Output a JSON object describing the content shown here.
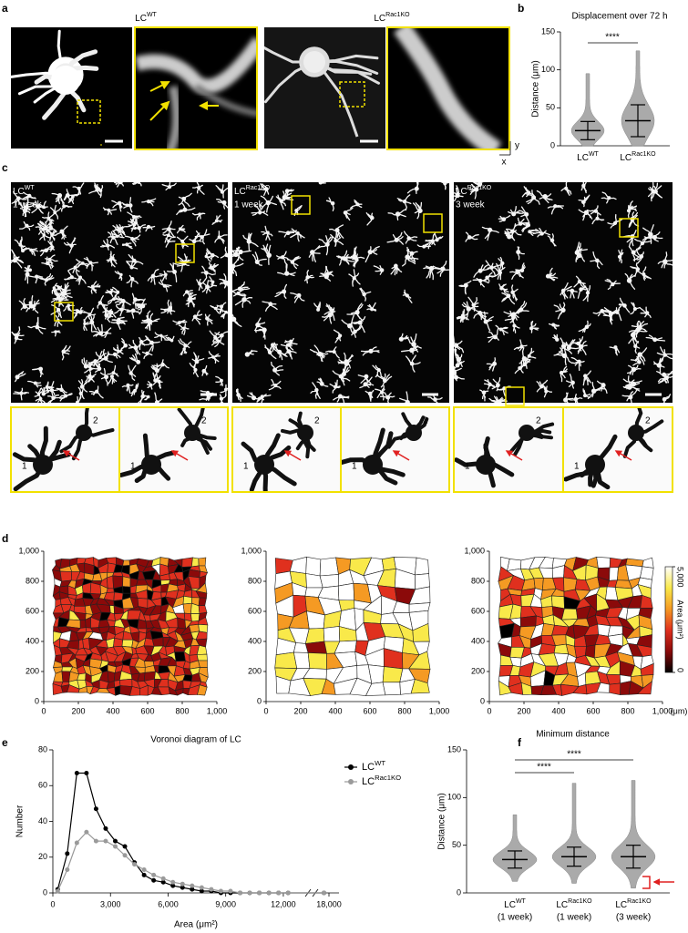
{
  "figure": {
    "panel_letters": [
      "a",
      "b",
      "c",
      "d",
      "e",
      "f"
    ],
    "a": {
      "groups": [
        {
          "name": "LC",
          "sup": "WT"
        },
        {
          "name": "LC",
          "sup": "Rac1KO"
        }
      ],
      "x_axis": "x",
      "y_axis": "y"
    },
    "c": {
      "groups": [
        {
          "name": "LC",
          "sup": "WT",
          "time": "1 week"
        },
        {
          "name": "LC",
          "sup": "Rac1KO",
          "time": "1 week"
        },
        {
          "name": "LC",
          "sup": "Rac1KO",
          "time": "3 week"
        }
      ],
      "cell_labels": [
        "1",
        "2"
      ]
    }
  },
  "chart_data": [
    {
      "type": "swarm",
      "title": "Displacement over 72 h",
      "y_label": "Distance (μm)",
      "categories": [
        "LC",
        "LC"
      ],
      "category_sups": [
        "WT",
        "Rac1KO"
      ],
      "values": [
        20,
        33
      ],
      "errors": [
        12,
        21
      ],
      "mins": [
        0,
        0
      ],
      "maxs": [
        95,
        125
      ],
      "ylim": [
        0,
        150
      ],
      "yticks": [
        0,
        50,
        100,
        150
      ],
      "significance": [
        "****"
      ],
      "color": "#aaaaaa"
    },
    {
      "type": "voronoi",
      "xlim": [
        0,
        1000
      ],
      "ylim": [
        0,
        1000
      ],
      "xticks": [
        0,
        200,
        400,
        600,
        800,
        {
          "value": 1000,
          "label": "1,000"
        }
      ],
      "yticks": [
        0,
        200,
        400,
        600,
        800,
        {
          "value": 1000,
          "label": "1,000"
        }
      ],
      "x_unit": "(μm)",
      "colorbar": {
        "label": "Area (μm²)",
        "lim": [
          0,
          5000
        ],
        "ticks": [
          0,
          {
            "value": 5000,
            "label": "5,000"
          }
        ],
        "colors": [
          "#000000",
          "#8b0a0a",
          "#e0301e",
          "#f59a23",
          "#f9e94a",
          "#ffffff"
        ]
      }
    },
    {
      "type": "line",
      "title": "Voronoi diagram of LC",
      "x_label": "Area (μm²)",
      "y_label": "Number",
      "x": [
        250,
        750,
        1250,
        1750,
        2250,
        2750,
        3250,
        3750,
        4250,
        4750,
        5250,
        5750,
        6250,
        6750,
        7250,
        7750,
        8250,
        8750,
        9250,
        9750,
        10250,
        10750,
        11250,
        11750,
        12250,
        17750
      ],
      "xlim": [
        0,
        18500
      ],
      "axis_break": [
        13000,
        17500
      ],
      "xticks": [
        0,
        {
          "value": 3000,
          "label": "3,000"
        },
        {
          "value": 6000,
          "label": "6,000"
        },
        {
          "value": 9000,
          "label": "9,000"
        },
        {
          "value": 12000,
          "label": "12,000"
        },
        {
          "value": 18000,
          "label": "18,000"
        }
      ],
      "ylim": [
        0,
        80
      ],
      "yticks": [
        0,
        20,
        40,
        60,
        80
      ],
      "series": [
        {
          "name": "LC",
          "name_sup": "WT",
          "color": "#000000",
          "values": [
            2,
            22,
            67,
            67,
            47,
            36,
            29,
            26,
            17,
            10,
            7,
            6,
            4,
            3,
            2,
            1,
            1,
            0,
            0,
            0,
            0,
            0,
            0,
            0,
            0,
            0
          ]
        },
        {
          "name": "LC",
          "name_sup": "Rac1KO",
          "color": "#9a9a9a",
          "values": [
            1,
            13,
            28,
            34,
            29,
            29,
            26,
            21,
            16,
            13,
            10,
            8,
            6,
            5,
            4,
            3,
            2,
            1,
            1,
            0,
            0,
            0,
            0,
            0,
            0,
            0
          ]
        }
      ]
    },
    {
      "type": "swarm",
      "title": "Minimum distance",
      "y_label": "Distance (μm)",
      "categories": [
        "LC",
        "LC",
        "LC"
      ],
      "category_sups": [
        "WT",
        "Rac1KO",
        "Rac1KO"
      ],
      "category_notes": [
        "(1 week)",
        "(1 week)",
        "(3 week)"
      ],
      "values": [
        35,
        38,
        38
      ],
      "errors": [
        9,
        10,
        12
      ],
      "mins": [
        12,
        10,
        5
      ],
      "maxs": [
        82,
        115,
        118
      ],
      "ylim": [
        0,
        150
      ],
      "yticks": [
        0,
        50,
        100,
        150
      ],
      "significance": [
        "****",
        "****"
      ],
      "color": "#aaaaaa"
    }
  ]
}
